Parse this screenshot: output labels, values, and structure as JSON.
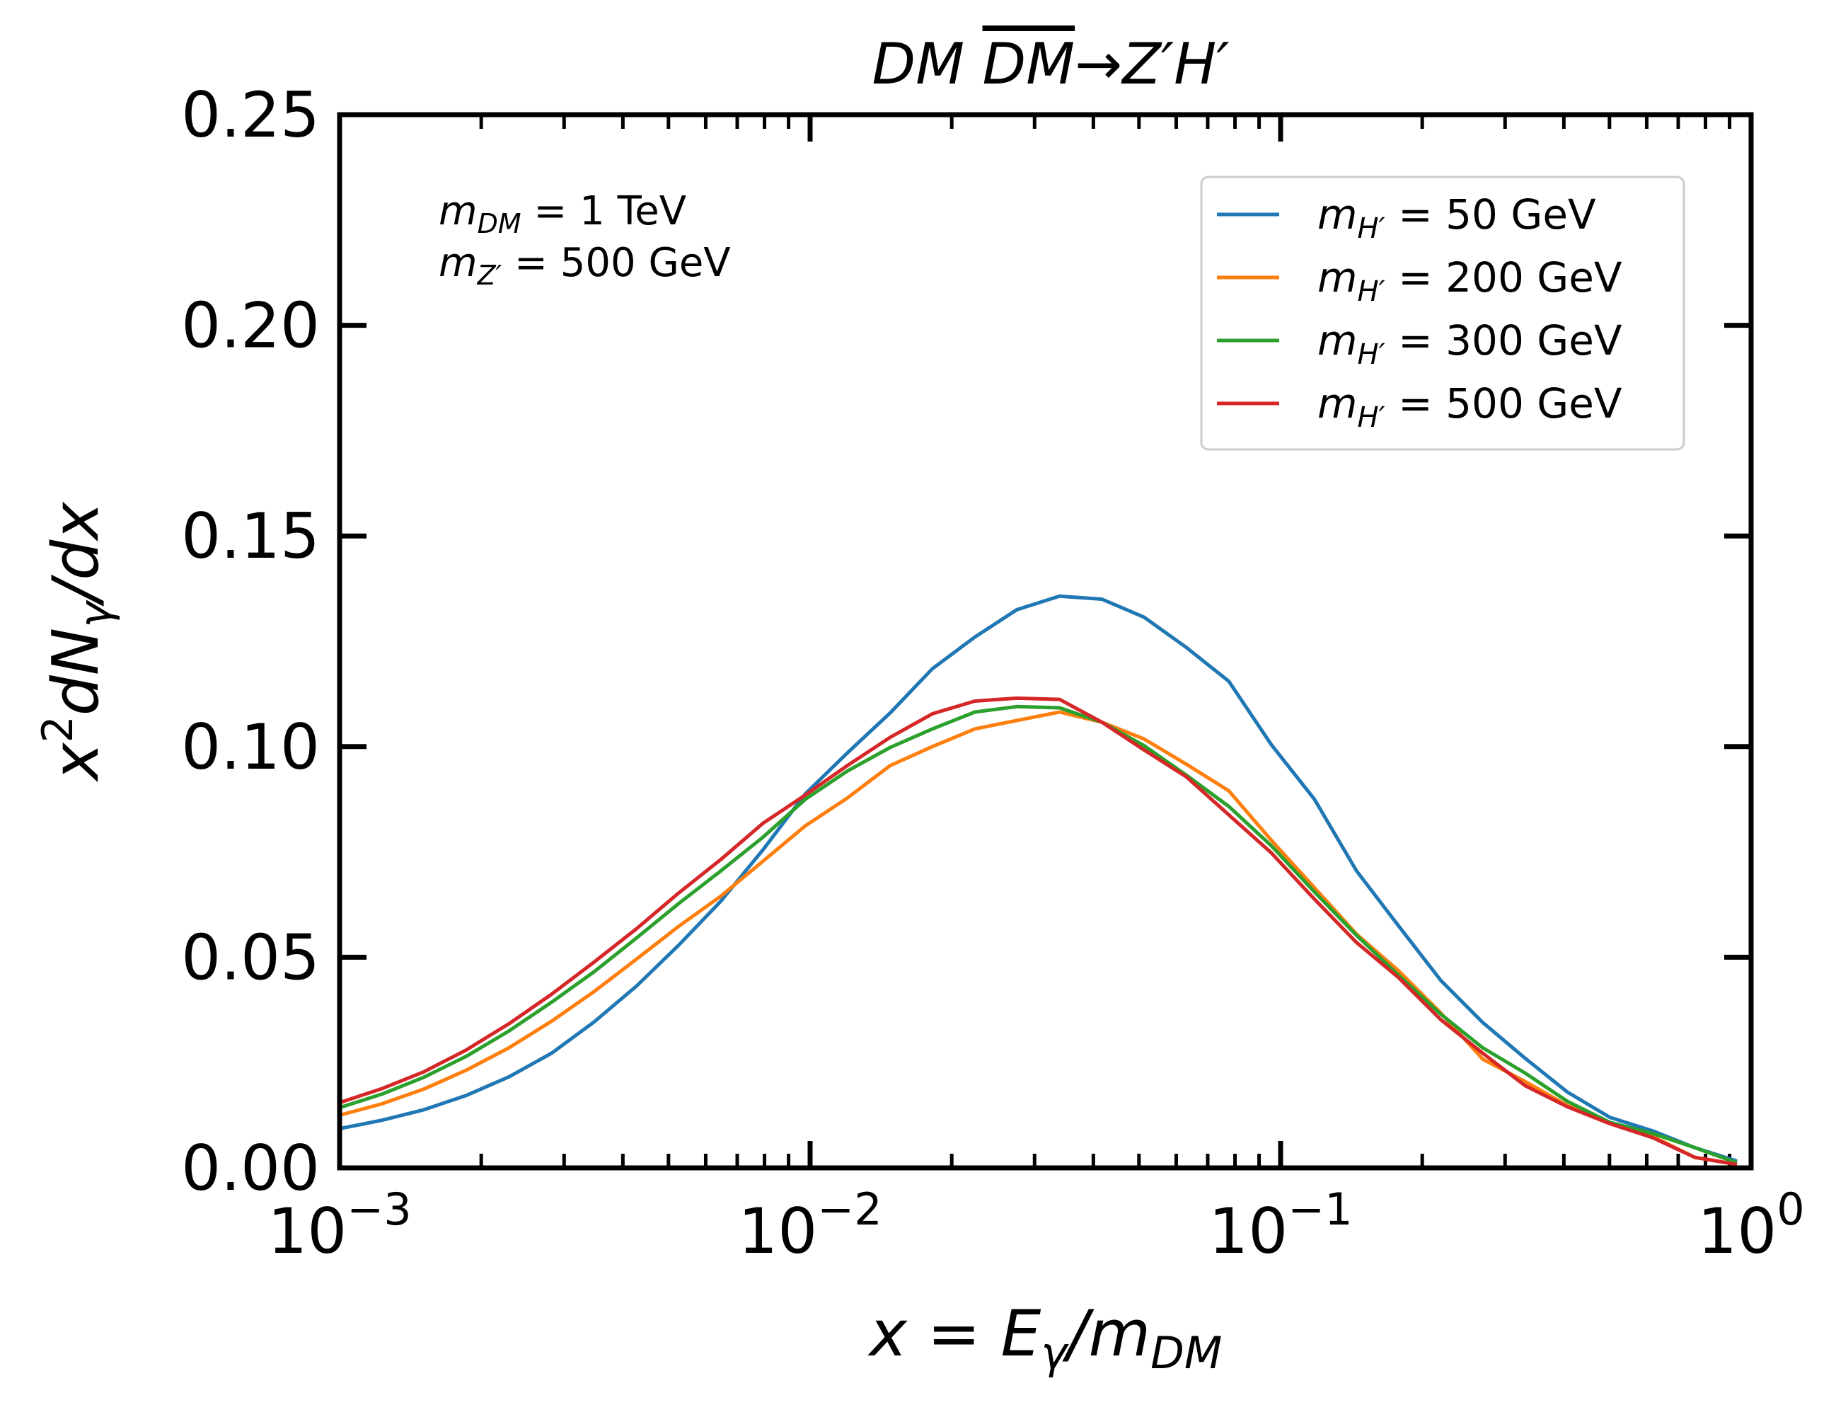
{
  "chart_data": {
    "type": "line",
    "title": "DM DM̅→Z′H′",
    "title_parts": {
      "left": "DM",
      "bar": "DM",
      "right": "→Z′H′"
    },
    "xlabel": "x = Eγ/mDM",
    "xlabel_parts": {
      "lhs": "x",
      "eq": " = ",
      "E": "E",
      "gamma": "γ",
      "slash": "/m",
      "dm": "DM"
    },
    "ylabel": "x²dNγ/dx",
    "ylabel_parts": {
      "x": "x",
      "sq": "2",
      "dN": "dN",
      "gamma": "γ",
      "dx": "/dx"
    },
    "xscale": "log",
    "xlim": [
      0.001,
      1
    ],
    "ylim": [
      0,
      0.25
    ],
    "x_ticks": [
      {
        "value": 0.001,
        "base": "10",
        "exp": "−3"
      },
      {
        "value": 0.01,
        "base": "10",
        "exp": "−2"
      },
      {
        "value": 0.1,
        "base": "10",
        "exp": "−1"
      },
      {
        "value": 1,
        "base": "10",
        "exp": "0"
      }
    ],
    "y_ticks": [
      {
        "value": 0.0,
        "label": "0.00"
      },
      {
        "value": 0.05,
        "label": "0.05"
      },
      {
        "value": 0.1,
        "label": "0.10"
      },
      {
        "value": 0.15,
        "label": "0.15"
      },
      {
        "value": 0.2,
        "label": "0.20"
      },
      {
        "value": 0.25,
        "label": "0.25"
      }
    ],
    "annotations": [
      {
        "m": "m",
        "sub": "DM",
        "rest": " = 1 TeV"
      },
      {
        "m": "m",
        "sub": "Z′",
        "rest": " = 500 GeV"
      }
    ],
    "legend_position": "top-right",
    "x": [
      0.001,
      0.00123,
      0.00151,
      0.00186,
      0.00229,
      0.00282,
      0.00347,
      0.00427,
      0.00525,
      0.00646,
      0.00794,
      0.00977,
      0.012,
      0.0148,
      0.0182,
      0.0224,
      0.0275,
      0.0339,
      0.0417,
      0.0513,
      0.0631,
      0.0776,
      0.0955,
      0.118,
      0.145,
      0.178,
      0.219,
      0.269,
      0.331,
      0.407,
      0.501,
      0.617,
      0.759,
      0.933
    ],
    "series": [
      {
        "name": "m_H' = 50 GeV",
        "label_prefix": "m",
        "label_sub": "H′",
        "label_rest": " = 50 GeV",
        "color": "#1f77b4",
        "values": [
          0.0093,
          0.0113,
          0.0138,
          0.0172,
          0.0216,
          0.0272,
          0.0346,
          0.0431,
          0.0528,
          0.0633,
          0.0755,
          0.0888,
          0.0985,
          0.108,
          0.1185,
          0.126,
          0.1325,
          0.1357,
          0.135,
          0.1307,
          0.1235,
          0.1155,
          0.1005,
          0.0875,
          0.0705,
          0.0575,
          0.0445,
          0.0345,
          0.026,
          0.018,
          0.012,
          0.0088,
          0.0048,
          0.0016
        ]
      },
      {
        "name": "m_H' = 200 GeV",
        "label_prefix": "m",
        "label_sub": "H′",
        "label_rest": " = 200 GeV",
        "color": "#ff7f0e",
        "values": [
          0.0125,
          0.0152,
          0.0187,
          0.0232,
          0.0285,
          0.0348,
          0.0418,
          0.0495,
          0.0573,
          0.0645,
          0.0728,
          0.0812,
          0.0878,
          0.0955,
          0.1,
          0.1042,
          0.1062,
          0.1082,
          0.1058,
          0.1018,
          0.0958,
          0.0895,
          0.0778,
          0.0665,
          0.0555,
          0.0468,
          0.0368,
          0.0258,
          0.0205,
          0.0148,
          0.0105,
          0.0075,
          0.0025,
          0.0008
        ]
      },
      {
        "name": "m_H' = 300 GeV",
        "label_prefix": "m",
        "label_sub": "H′",
        "label_rest": " = 300 GeV",
        "color": "#2ca02c",
        "values": [
          0.0143,
          0.0175,
          0.0215,
          0.0265,
          0.0325,
          0.0393,
          0.0465,
          0.0545,
          0.0627,
          0.0705,
          0.0785,
          0.0875,
          0.0942,
          0.0998,
          0.1042,
          0.1082,
          0.1095,
          0.1092,
          0.1058,
          0.1002,
          0.0932,
          0.0858,
          0.0765,
          0.0655,
          0.0552,
          0.0458,
          0.0365,
          0.0285,
          0.0225,
          0.0158,
          0.0108,
          0.0082,
          0.0048,
          0.0012
        ]
      },
      {
        "name": "m_H' = 500 GeV",
        "label_prefix": "m",
        "label_sub": "H′",
        "label_rest": " = 500 GeV",
        "color": "#d62728",
        "values": [
          0.0155,
          0.0188,
          0.0228,
          0.028,
          0.0342,
          0.0412,
          0.0488,
          0.0567,
          0.0652,
          0.0732,
          0.0818,
          0.0885,
          0.0955,
          0.1022,
          0.1078,
          0.1108,
          0.1115,
          0.1112,
          0.1058,
          0.0992,
          0.0928,
          0.0838,
          0.0748,
          0.0638,
          0.0535,
          0.0452,
          0.0352,
          0.0272,
          0.0195,
          0.0145,
          0.0105,
          0.0072,
          0.0025,
          0.0008
        ]
      }
    ]
  }
}
